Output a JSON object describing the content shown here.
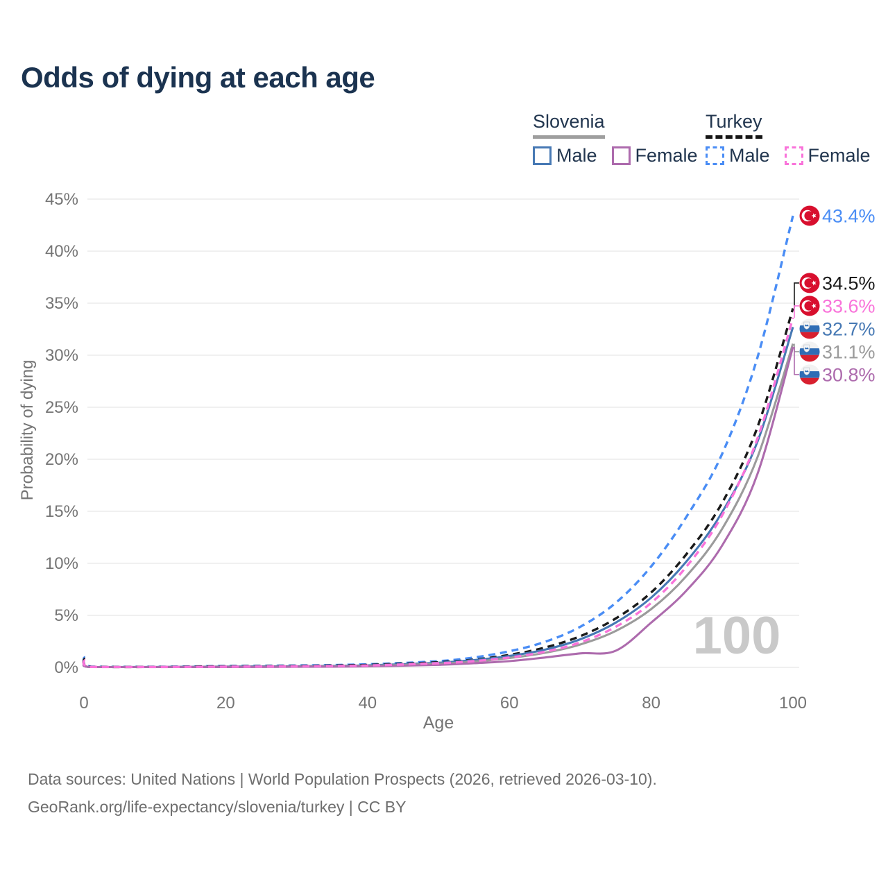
{
  "header": {
    "title": "Odds of dying at each age"
  },
  "legend": {
    "groups": [
      {
        "country": "Slovenia",
        "line_style": "solid",
        "underline_color": "#9e9e9e",
        "items": [
          {
            "label": "Male",
            "color": "#4779b4"
          },
          {
            "label": "Female",
            "color": "#ad6bad"
          }
        ]
      },
      {
        "country": "Turkey",
        "line_style": "dashed",
        "underline_color": "#151515",
        "items": [
          {
            "label": "Male",
            "color": "#4a8df5"
          },
          {
            "label": "Female",
            "color": "#f973da"
          }
        ]
      }
    ]
  },
  "chart_data": {
    "type": "line",
    "title": "Odds of dying at each age",
    "xlabel": "Age",
    "ylabel": "Probability of dying",
    "xlim": [
      0,
      100
    ],
    "ylim_percent": [
      0,
      45
    ],
    "x_ticks": [
      0,
      20,
      40,
      60,
      80,
      100
    ],
    "y_ticks": [
      "0%",
      "5%",
      "10%",
      "15%",
      "20%",
      "25%",
      "30%",
      "35%",
      "40%",
      "45%"
    ],
    "y_tick_values": [
      0,
      5,
      10,
      15,
      20,
      25,
      30,
      35,
      40,
      45
    ],
    "grid": true,
    "legend_position": "top-right",
    "watermark": "100",
    "ages": [
      0,
      1,
      10,
      20,
      30,
      40,
      50,
      55,
      60,
      65,
      70,
      75,
      80,
      85,
      90,
      95,
      100
    ],
    "series": [
      {
        "name": "Turkey Male",
        "country": "Turkey",
        "sex": "male",
        "flag": "turkey",
        "color": "#4a8df5",
        "dashed": true,
        "end_label": "43.4%",
        "end_value": 43.4,
        "values": [
          1.05,
          0.08,
          0.06,
          0.13,
          0.18,
          0.3,
          0.6,
          0.95,
          1.55,
          2.45,
          3.9,
          6.2,
          9.7,
          14.5,
          20.5,
          29.8,
          43.4
        ]
      },
      {
        "name": "Turkey",
        "country": "Turkey",
        "sex": "both",
        "flag": "turkey",
        "color": "#1a1a1a",
        "dashed": true,
        "end_label": "34.5%",
        "end_value": 34.5,
        "values": [
          0.9,
          0.06,
          0.05,
          0.1,
          0.14,
          0.24,
          0.5,
          0.75,
          1.2,
          1.9,
          3.0,
          4.7,
          7.2,
          10.9,
          15.8,
          23.1,
          34.5
        ]
      },
      {
        "name": "Turkey Female",
        "country": "Turkey",
        "sex": "female",
        "flag": "turkey",
        "color": "#f973da",
        "dashed": true,
        "end_label": "33.6%",
        "end_value": 33.6,
        "values": [
          0.75,
          0.05,
          0.04,
          0.07,
          0.1,
          0.18,
          0.4,
          0.6,
          0.95,
          1.5,
          2.4,
          3.9,
          6.2,
          9.7,
          14.6,
          22.0,
          33.6
        ]
      },
      {
        "name": "Slovenia Male",
        "country": "Slovenia",
        "sex": "male",
        "flag": "slovenia",
        "color": "#4779b4",
        "dashed": false,
        "end_label": "32.7%",
        "end_value": 32.7,
        "values": [
          0.45,
          0.03,
          0.04,
          0.08,
          0.11,
          0.2,
          0.45,
          0.7,
          1.1,
          1.7,
          2.7,
          4.3,
          6.7,
          10.2,
          14.9,
          21.7,
          32.7
        ]
      },
      {
        "name": "Slovenia",
        "country": "Slovenia",
        "sex": "both",
        "flag": "slovenia",
        "color": "#9b9b9b",
        "dashed": false,
        "end_label": "31.1%",
        "end_value": 31.1,
        "values": [
          0.4,
          0.025,
          0.03,
          0.06,
          0.08,
          0.15,
          0.35,
          0.55,
          0.9,
          1.4,
          2.2,
          3.5,
          5.6,
          8.8,
          13.3,
          20.2,
          31.1
        ]
      },
      {
        "name": "Slovenia Female",
        "country": "Slovenia",
        "sex": "female",
        "flag": "slovenia",
        "color": "#ad6bad",
        "dashed": false,
        "end_label": "30.8%",
        "end_value": 30.8,
        "values": [
          0.35,
          0.02,
          0.025,
          0.04,
          0.06,
          0.1,
          0.25,
          0.4,
          0.6,
          0.95,
          1.35,
          1.6,
          4.3,
          7.4,
          11.7,
          18.6,
          30.8
        ]
      }
    ]
  },
  "footer": {
    "line1": "Data sources: United Nations | World Population Prospects (2026, retrieved 2026-03-10).",
    "line2": "GeoRank.org/life-expectancy/slovenia/turkey | CC BY"
  },
  "colors": {
    "title": "#1b3350",
    "axis_text": "#757575",
    "gridline": "#ebebeb",
    "watermark": "#c9c9c9",
    "turkey_flag_red": "#d80f2e",
    "slovenia_flag_blue": "#2f6db5",
    "slovenia_flag_red": "#d8202f"
  }
}
